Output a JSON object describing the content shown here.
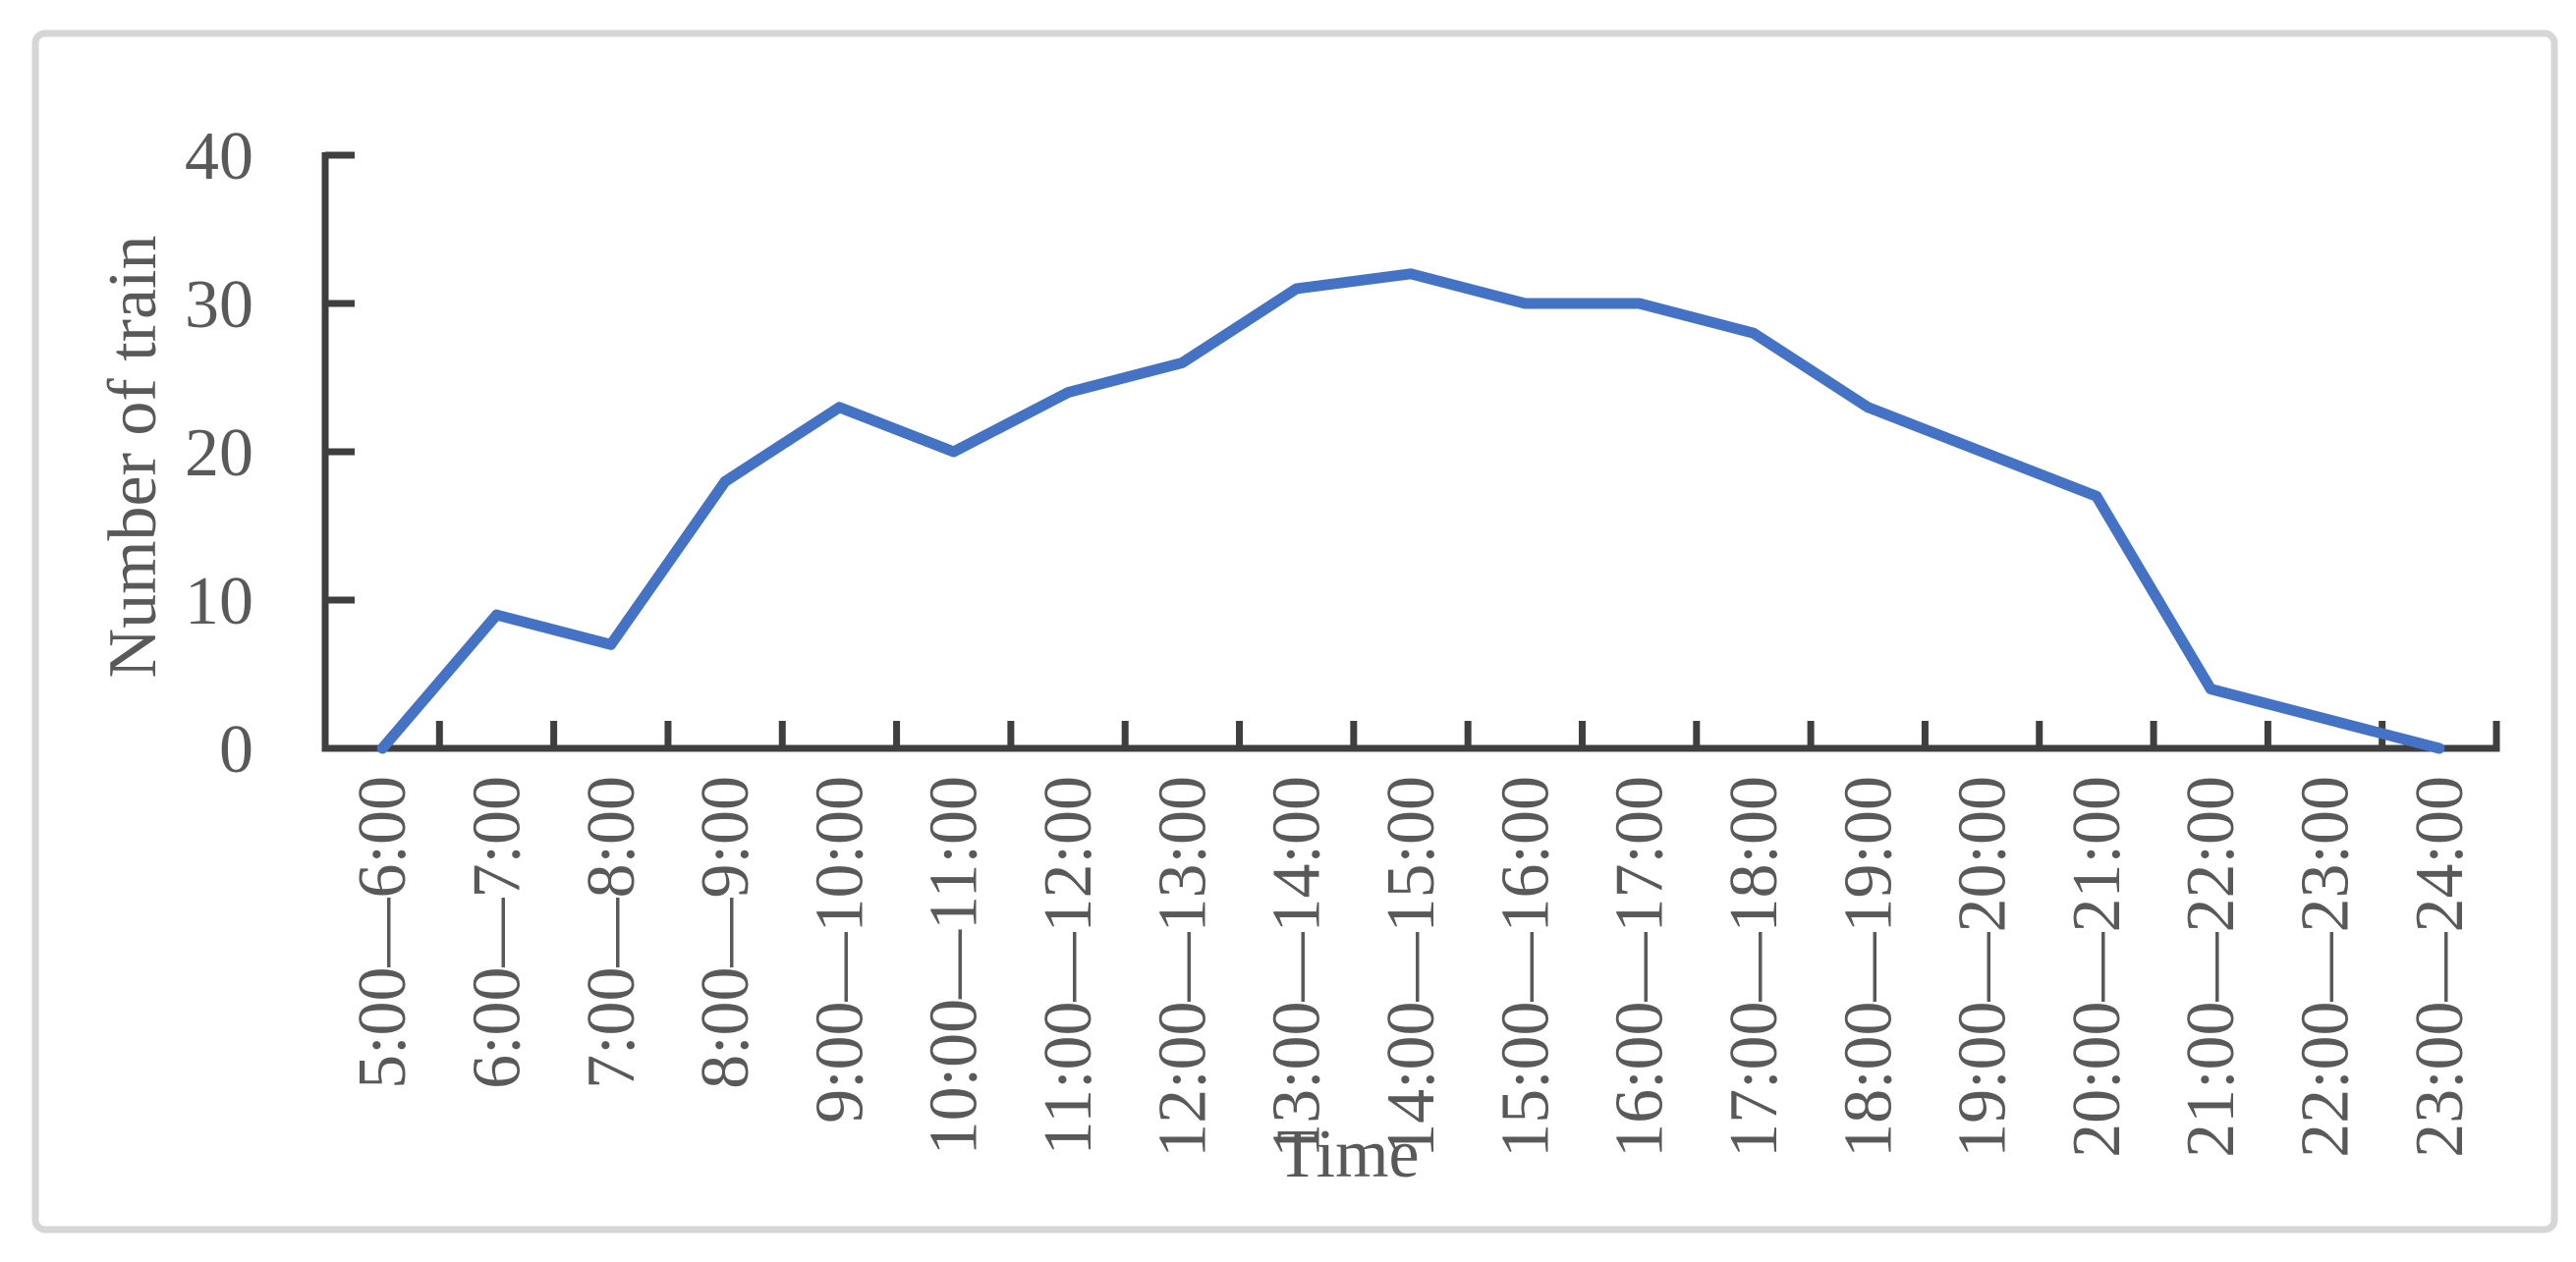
{
  "chart_data": {
    "type": "line",
    "categories": [
      "5:00—6:00",
      "6:00—7:00",
      "7:00—8:00",
      "8:00—9:00",
      "9:00—10:00",
      "10:00—11:00",
      "11:00—12:00",
      "12:00—13:00",
      "13:00—14:00",
      "14:00—15:00",
      "15:00—16:00",
      "16:00—17:00",
      "17:00—18:00",
      "18:00—19:00",
      "19:00—20:00",
      "20:00—21:00",
      "21:00—22:00",
      "22:00—23:00",
      "23:00—24:00"
    ],
    "values": [
      0,
      9,
      7,
      18,
      23,
      20,
      24,
      26,
      31,
      32,
      30,
      30,
      28,
      23,
      20,
      17,
      4,
      2,
      0
    ],
    "title": "",
    "xlabel": "Time",
    "ylabel": "Number of train",
    "ylim": [
      0,
      40
    ],
    "yticks": [
      0,
      10,
      20,
      30,
      40
    ],
    "grid": false,
    "legend": "none",
    "series_name": "Number of train",
    "colors": {
      "line": "#4472C4",
      "axis": "#3F3F3F",
      "text": "#595959",
      "border": "#D6D6D6",
      "background": "#FFFFFF"
    }
  }
}
